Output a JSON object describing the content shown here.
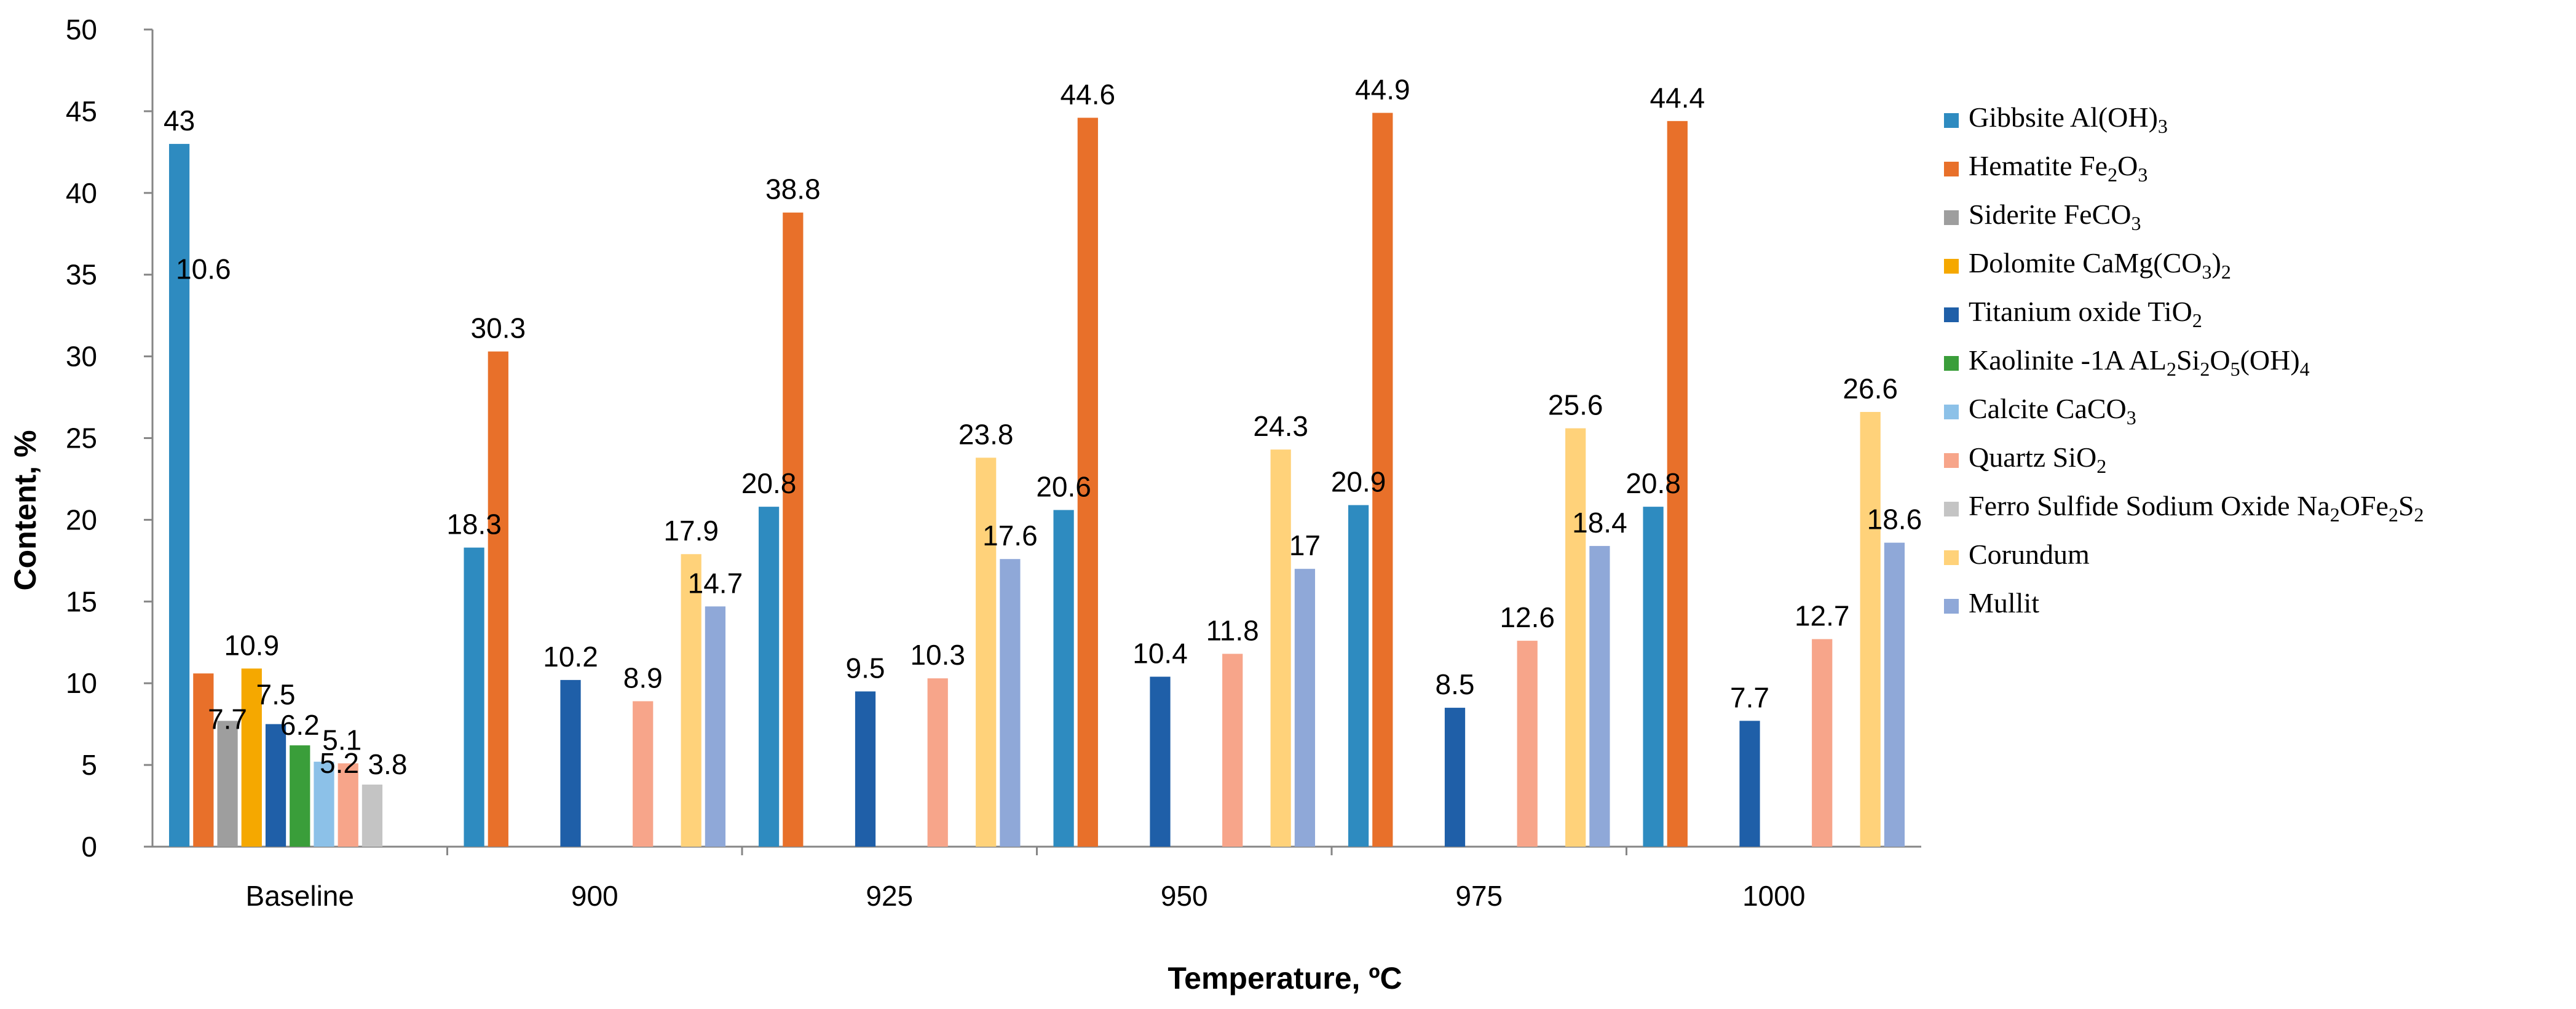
{
  "chart_data": {
    "type": "bar",
    "title": "",
    "xlabel": "Temperature, ºC",
    "ylabel": "Content, %",
    "ylim": [
      0,
      50
    ],
    "ytick_step": 5,
    "categories": [
      "Baseline",
      "900",
      "925",
      "950",
      "975",
      "1000"
    ],
    "legend_position": "right",
    "series": [
      {
        "name": "Gibbsite Al(OH)3",
        "color": "#2E8BC0",
        "values": [
          43,
          18.3,
          20.8,
          20.6,
          20.9,
          20.8
        ]
      },
      {
        "name": "Hematite Fe2O3",
        "color": "#E8702A",
        "values": [
          10.6,
          30.3,
          38.8,
          44.6,
          44.9,
          44.4
        ]
      },
      {
        "name": "Siderite FeCO3",
        "color": "#9E9E9E",
        "values": [
          7.7,
          null,
          null,
          null,
          null,
          null
        ]
      },
      {
        "name": "Dolomite CaMg(CO3)2",
        "color": "#F5A800",
        "values": [
          10.9,
          null,
          null,
          null,
          null,
          null
        ]
      },
      {
        "name": "Titanium oxide TiO2",
        "color": "#1F5FA8",
        "values": [
          7.5,
          10.2,
          9.5,
          10.4,
          8.5,
          7.7
        ]
      },
      {
        "name": "Kaolinite -1A AL2Si2O5(OH)4",
        "color": "#3A9E3A",
        "values": [
          6.2,
          null,
          null,
          null,
          null,
          null
        ]
      },
      {
        "name": "Calcite CaCO3",
        "color": "#8CC1E8",
        "values": [
          5.2,
          null,
          null,
          null,
          null,
          null
        ]
      },
      {
        "name": "Quartz SiO2",
        "color": "#F7A58A",
        "values": [
          5.1,
          8.9,
          10.3,
          11.8,
          12.6,
          12.7
        ]
      },
      {
        "name": "Ferro Sulfide Sodium Oxide Na2OFe2S2",
        "color": "#C4C4C4",
        "values": [
          3.8,
          null,
          null,
          null,
          null,
          null
        ]
      },
      {
        "name": "Corundum",
        "color": "#FFD27A",
        "values": [
          null,
          17.9,
          23.8,
          24.3,
          25.6,
          26.6
        ]
      },
      {
        "name": "Mullit",
        "color": "#8FA8D8",
        "values": [
          null,
          14.7,
          17.6,
          17,
          18.4,
          18.6
        ]
      }
    ],
    "legend_labels": [
      [
        [
          "Gibbsite Al(OH)",
          ""
        ],
        [
          "3",
          "sub"
        ]
      ],
      [
        [
          "Hematite Fe",
          ""
        ],
        [
          "2",
          "sub"
        ],
        [
          "O",
          ""
        ],
        [
          "3",
          "sub"
        ]
      ],
      [
        [
          "Siderite FeCO",
          ""
        ],
        [
          "3",
          "sub"
        ]
      ],
      [
        [
          "Dolomite CaMg(CO",
          ""
        ],
        [
          "3",
          "sub"
        ],
        [
          ")",
          ""
        ],
        [
          "2",
          "sub"
        ]
      ],
      [
        [
          "Titanium oxide TiO",
          ""
        ],
        [
          "2",
          "sub"
        ]
      ],
      [
        [
          "Kaolinite -1A AL",
          ""
        ],
        [
          "2",
          "sub"
        ],
        [
          "Si",
          ""
        ],
        [
          "2",
          "sub"
        ],
        [
          "O",
          ""
        ],
        [
          "5",
          "sub"
        ],
        [
          "(OH)",
          ""
        ],
        [
          "4",
          "sub"
        ]
      ],
      [
        [
          "Calcite CaCO",
          ""
        ],
        [
          "3",
          "sub"
        ]
      ],
      [
        [
          "Quartz SiO",
          ""
        ],
        [
          "2",
          "sub"
        ]
      ],
      [
        [
          "Ferro Sulfide Sodium Oxide Na",
          ""
        ],
        [
          "2",
          "sub"
        ],
        [
          "OFe",
          ""
        ],
        [
          "2",
          "sub"
        ],
        [
          "S",
          ""
        ],
        [
          "2",
          "sub"
        ]
      ],
      [
        [
          "Corundum",
          ""
        ]
      ],
      [
        [
          "Mullit",
          ""
        ]
      ]
    ]
  }
}
